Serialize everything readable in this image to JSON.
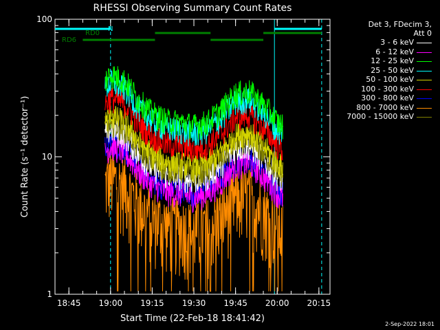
{
  "chart_data": {
    "type": "line",
    "title": "RHESSI Observing Summary Count Rates",
    "xlabel": "Start Time (22-Feb-18 18:41:42)",
    "ylabel": "Count Rate (s⁻¹ detector⁻¹)",
    "y_scale": "log",
    "ylim": [
      1,
      100
    ],
    "y_ticks": [
      "1",
      "10",
      "100"
    ],
    "xlim": [
      "18:40",
      "20:19"
    ],
    "x_ticks": [
      "18:45",
      "19:00",
      "19:15",
      "19:30",
      "19:45",
      "20:00",
      "20:15"
    ],
    "legend_header": [
      "Det 3, FDecim 3,",
      "Att 0"
    ],
    "legend_position": "right",
    "series": [
      {
        "name": "3 - 6 keV",
        "color": "#ffffff",
        "base": 16,
        "scale": 1.0
      },
      {
        "name": "6 - 12 keV",
        "color": "#ff00ff",
        "base": 12,
        "scale": 0.75
      },
      {
        "name": "12 - 25 keV",
        "color": "#00ff00",
        "base": 40,
        "scale": 2.4
      },
      {
        "name": "25 - 50 keV",
        "color": "#00ffff",
        "base": 35,
        "scale": 2.1
      },
      {
        "name": "50 - 100 keV",
        "color": "#d4d400",
        "base": 20,
        "scale": 1.25
      },
      {
        "name": "100 - 300 keV",
        "color": "#ff0000",
        "base": 27,
        "scale": 1.65
      },
      {
        "name": "300 - 800 keV",
        "color": "#0000ff",
        "base": 13,
        "scale": 0.8
      },
      {
        "name": "800 - 7000 keV",
        "color": "#ff8c00",
        "base": 7,
        "scale": 0.42
      },
      {
        "name": "7000 - 15000 keV",
        "color": "#808000",
        "base": 18,
        "scale": 1.1
      }
    ],
    "profile": [
      {
        "t": "18:57",
        "v": 0.0
      },
      {
        "t": "18:58",
        "v": 0.9
      },
      {
        "t": "19:00",
        "v": 1.0
      },
      {
        "t": "19:05",
        "v": 0.9
      },
      {
        "t": "19:10",
        "v": 0.65
      },
      {
        "t": "19:15",
        "v": 0.52
      },
      {
        "t": "19:20",
        "v": 0.46
      },
      {
        "t": "19:25",
        "v": 0.45
      },
      {
        "t": "19:30",
        "v": 0.42
      },
      {
        "t": "19:35",
        "v": 0.45
      },
      {
        "t": "19:40",
        "v": 0.55
      },
      {
        "t": "19:45",
        "v": 0.72
      },
      {
        "t": "19:50",
        "v": 0.75
      },
      {
        "t": "19:55",
        "v": 0.6
      },
      {
        "t": "20:00",
        "v": 0.45
      },
      {
        "t": "20:02",
        "v": 0.42
      }
    ],
    "cyan_vlines": [
      {
        "t": "18:40",
        "style": "solid"
      },
      {
        "t": "19:00",
        "style": "dashed"
      },
      {
        "t": "19:59",
        "style": "solid"
      },
      {
        "t": "20:16",
        "style": "dashed"
      }
    ],
    "flag_bars": [
      {
        "label": "N",
        "color": "#00ffff",
        "segments": [
          [
            "18:40",
            "19:00"
          ],
          [
            "19:59",
            "20:16"
          ]
        ],
        "level": "top"
      },
      {
        "label": "RD0",
        "color": "#008000",
        "segments": [
          [
            "19:16",
            "19:36"
          ],
          [
            "19:55",
            "20:16"
          ]
        ],
        "level": "mid"
      },
      {
        "label": "RD6",
        "color": "#008000",
        "segments": [
          [
            "18:50",
            "19:16"
          ],
          [
            "19:36",
            "19:55"
          ]
        ],
        "level": "low"
      }
    ],
    "footer": "2-Sep-2022 18:01"
  }
}
